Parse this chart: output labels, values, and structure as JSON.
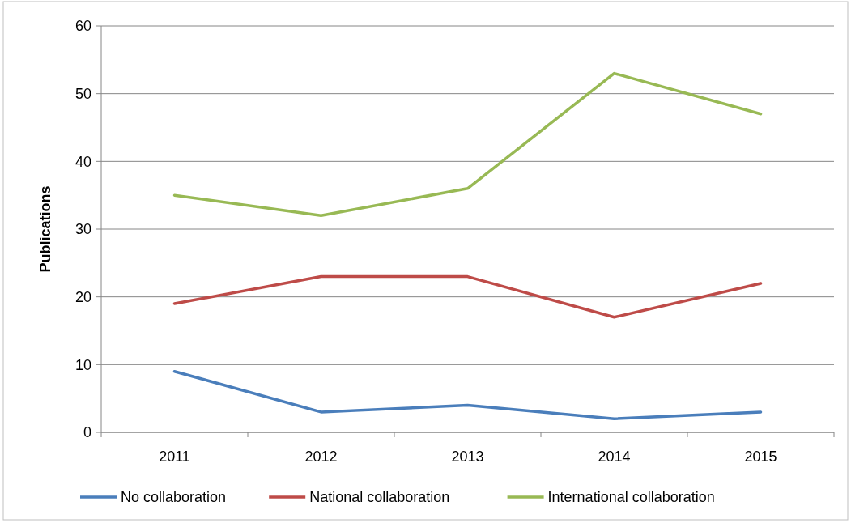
{
  "chart_data": {
    "type": "line",
    "ylabel": "Publications",
    "categories": [
      "2011",
      "2012",
      "2013",
      "2014",
      "2015"
    ],
    "series": [
      {
        "name": "No collaboration",
        "color": "#4a7ebb",
        "values": [
          9,
          3,
          4,
          2,
          3
        ]
      },
      {
        "name": "National collaboration",
        "color": "#be4b48",
        "values": [
          19,
          23,
          23,
          17,
          22
        ]
      },
      {
        "name": "International collaboration",
        "color": "#98b954",
        "values": [
          35,
          32,
          36,
          53,
          47
        ]
      }
    ],
    "ylim": [
      0,
      60
    ],
    "yticks": [
      0,
      10,
      20,
      30,
      40,
      50,
      60
    ],
    "grid": "y",
    "legend": "bottom",
    "marker": "none",
    "line_style": "solid"
  }
}
